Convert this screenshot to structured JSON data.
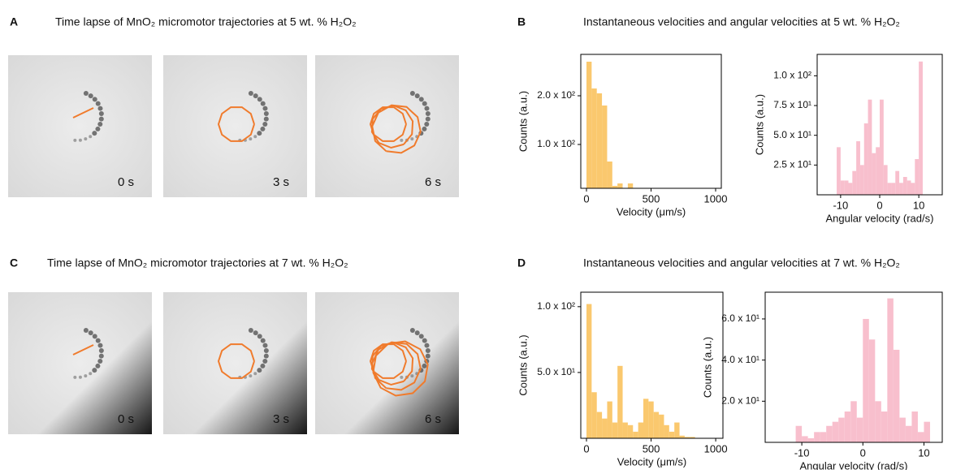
{
  "panels": [
    {
      "letter": "A",
      "title": "Time lapse of MnO₂ micromotor trajectories at 5 wt. % H₂O₂",
      "times": [
        "0 s",
        "3 s",
        "6 s"
      ]
    },
    {
      "letter": "B",
      "title": "Instantaneous velocities and angular velocities at 5 wt. % H₂O₂"
    },
    {
      "letter": "C",
      "title": "Time lapse of MnO₂ micromotor trajectories at 7 wt. % H₂O₂",
      "times": [
        "0 s",
        "3 s",
        "6 s"
      ]
    },
    {
      "letter": "D",
      "title": "Instantaneous velocities and angular velocities at 7 wt. % H₂O₂"
    }
  ],
  "chart_data": [
    {
      "type": "histogram",
      "x_label": "Velocity (μm/s)",
      "y_label": "Counts (a.u.)",
      "color": "#fac86e",
      "bins": [
        0,
        40,
        80,
        120,
        160,
        200,
        240,
        280,
        320,
        360,
        400
      ],
      "values": [
        270,
        215,
        205,
        180,
        65,
        15,
        20,
        5,
        20,
        5
      ],
      "xlim": [
        -44,
        1044
      ],
      "ylim": [
        10,
        285
      ],
      "xticks": [
        0,
        500,
        1000
      ],
      "yticks": [
        {
          "value": 100,
          "label": "1.0 x 10²"
        },
        {
          "value": 200,
          "label": "2.0 x 10²"
        }
      ]
    },
    {
      "type": "histogram",
      "x_label": "Angular velocity  (rad/s)",
      "y_label": "Counts (a.u.)",
      "color": "#f8bfcd",
      "bins": [
        -11,
        -10,
        -9,
        -8,
        -7,
        -6,
        -5,
        -4,
        -3,
        -2,
        -1,
        0,
        1,
        2,
        3,
        4,
        5,
        6,
        7,
        8,
        9,
        10,
        11
      ],
      "values": [
        40,
        12,
        12,
        10,
        20,
        45,
        25,
        60,
        80,
        35,
        40,
        80,
        25,
        10,
        10,
        20,
        10,
        15,
        12,
        10,
        30,
        112
      ],
      "xlim": [
        -16,
        16
      ],
      "ylim": [
        0,
        118
      ],
      "xticks": [
        -10,
        0,
        10
      ],
      "yticks": [
        {
          "value": 25,
          "label": "2.5 x 10¹"
        },
        {
          "value": 50,
          "label": "5.0 x 10¹"
        },
        {
          "value": 75,
          "label": "7.5 x 10¹"
        },
        {
          "value": 100,
          "label": "1.0 x 10²"
        }
      ]
    },
    {
      "type": "histogram",
      "x_label": "Velocity (μm/s)",
      "y_label": "Counts (a.u.)",
      "color": "#fac86e",
      "bins": [
        0,
        40,
        80,
        120,
        160,
        200,
        240,
        280,
        320,
        360,
        400,
        440,
        480,
        520,
        560,
        600,
        640,
        680,
        720,
        760,
        800,
        840
      ],
      "values": [
        102,
        35,
        20,
        15,
        28,
        12,
        55,
        12,
        10,
        5,
        12,
        30,
        28,
        20,
        18,
        10,
        5,
        12,
        2,
        1,
        1
      ],
      "xlim": [
        -44,
        1056
      ],
      "ylim": [
        0,
        111
      ],
      "xticks": [
        0,
        500,
        1000
      ],
      "yticks": [
        {
          "value": 50,
          "label": "5.0 x 10¹"
        },
        {
          "value": 100,
          "label": "1.0 x 10²"
        }
      ]
    },
    {
      "type": "histogram",
      "x_label": "Angular velocity  (rad/s)",
      "y_label": "Counts (a.u.)",
      "color": "#f8bfcd",
      "bins": [
        -11,
        -10,
        -9,
        -8,
        -7,
        -6,
        -5,
        -4,
        -3,
        -2,
        -1,
        0,
        1,
        2,
        3,
        4,
        5,
        6,
        7,
        8,
        9,
        10,
        11
      ],
      "values": [
        8,
        3,
        2,
        5,
        5,
        8,
        10,
        12,
        15,
        20,
        12,
        60,
        50,
        20,
        15,
        70,
        45,
        12,
        8,
        15,
        5,
        10
      ],
      "xlim": [
        -16,
        13
      ],
      "ylim": [
        0,
        73
      ],
      "xticks": [
        -10,
        0,
        10
      ],
      "yticks": [
        {
          "value": 20,
          "label": "2.0 x 10¹"
        },
        {
          "value": 40,
          "label": "4.0 x 10¹"
        },
        {
          "value": 60,
          "label": "6.0 x 10¹"
        }
      ]
    }
  ]
}
